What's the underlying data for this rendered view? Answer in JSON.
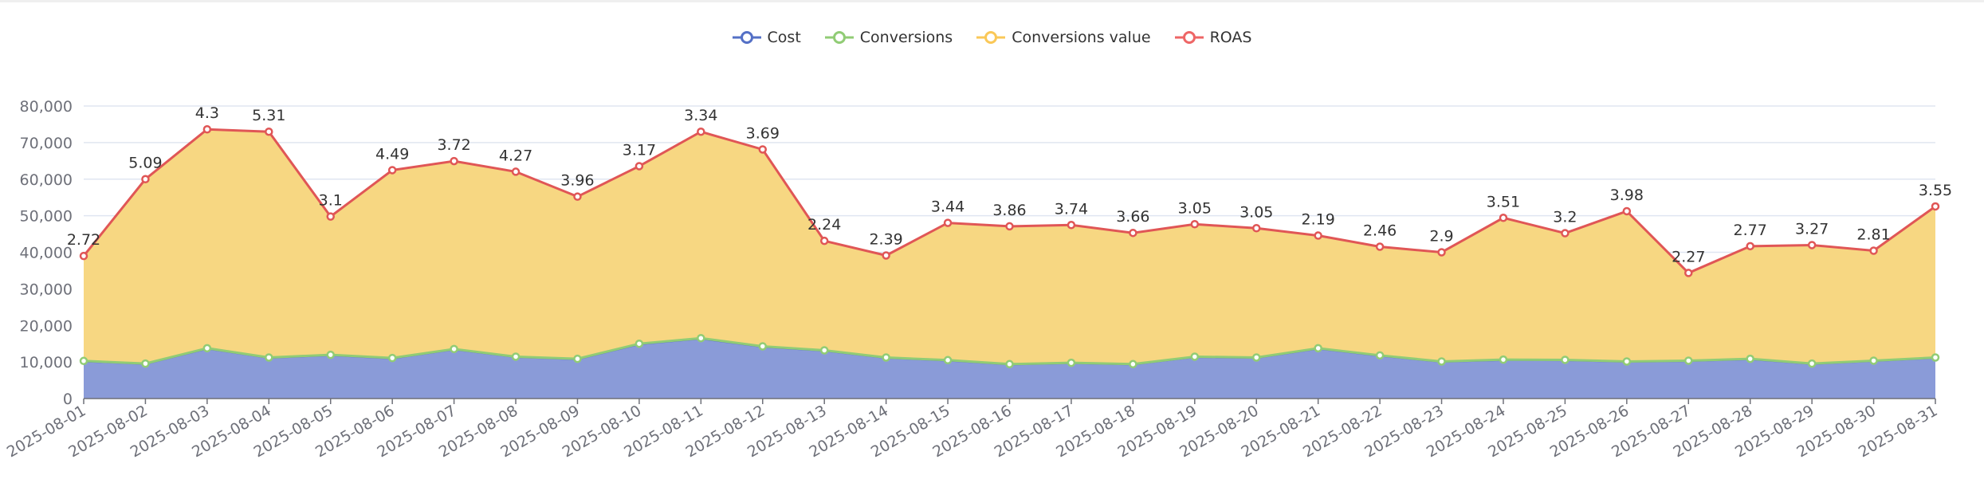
{
  "colors": {
    "cost": "#5470c6",
    "cost_area": "#8a9bd8",
    "conversions": "#91cc75",
    "conversions_value": "#fac858",
    "conversions_value_area": "#f7d782",
    "roas": "#e05656",
    "grid": "#e0e6f1",
    "axis": "#6e7079"
  },
  "legend": [
    {
      "name": "Cost",
      "icon": "circle-line-icon",
      "color": "#5470c6"
    },
    {
      "name": "Conversions",
      "icon": "circle-line-icon",
      "color": "#91cc75"
    },
    {
      "name": "Conversions value",
      "icon": "circle-line-icon",
      "color": "#fac858"
    },
    {
      "name": "ROAS",
      "icon": "circle-line-icon",
      "color": "#ee6666"
    }
  ],
  "chart_data": {
    "type": "area",
    "stacked": true,
    "title": "",
    "xlabel": "",
    "ylabel": "",
    "ylim": [
      0,
      80000
    ],
    "yticks": [
      "0",
      "10,000",
      "20,000",
      "30,000",
      "40,000",
      "50,000",
      "60,000",
      "70,000",
      "80,000"
    ],
    "grid": true,
    "legend_position": "top-center",
    "categories": [
      "2025-08-01",
      "2025-08-02",
      "2025-08-03",
      "2025-08-04",
      "2025-08-05",
      "2025-08-06",
      "2025-08-07",
      "2025-08-08",
      "2025-08-09",
      "2025-08-10",
      "2025-08-11",
      "2025-08-12",
      "2025-08-13",
      "2025-08-14",
      "2025-08-15",
      "2025-08-16",
      "2025-08-17",
      "2025-08-18",
      "2025-08-19",
      "2025-08-20",
      "2025-08-21",
      "2025-08-22",
      "2025-08-23",
      "2025-08-24",
      "2025-08-25",
      "2025-08-26",
      "2025-08-27",
      "2025-08-28",
      "2025-08-29",
      "2025-08-30",
      "2025-08-31"
    ],
    "series": [
      {
        "name": "Cost",
        "area": true,
        "values": [
          10140,
          9420,
          13600,
          11080,
          11800,
          10940,
          13380,
          11300,
          10720,
          14830,
          16340,
          14110,
          13030,
          11080,
          10360,
          9280,
          9640,
          9280,
          11300,
          11080,
          13600,
          11660,
          10000,
          10500,
          10430,
          10000,
          10220,
          10720,
          9420,
          10220,
          11080
        ]
      },
      {
        "name": "Conversions",
        "area": false,
        "values": [
          150,
          145,
          170,
          150,
          160,
          150,
          170,
          150,
          150,
          170,
          180,
          170,
          160,
          150,
          150,
          140,
          140,
          140,
          150,
          150,
          170,
          150,
          140,
          150,
          150,
          140,
          140,
          150,
          145,
          140,
          150
        ]
      },
      {
        "name": "Conversions value",
        "area": true,
        "values": [
          28700,
          50430,
          59850,
          61740,
          37820,
          51370,
          51380,
          50580,
          44350,
          48550,
          56450,
          53840,
          29930,
          27900,
          37530,
          37680,
          37680,
          35870,
          36230,
          35360,
          30800,
          29710,
          29860,
          38770,
          34640,
          41090,
          23990,
          30800,
          32400,
          30070,
          41310
        ]
      },
      {
        "name": "ROAS",
        "area": false,
        "show_labels": true,
        "values": [
          2.72,
          5.09,
          4.3,
          5.31,
          3.1,
          4.49,
          3.72,
          4.27,
          3.96,
          3.17,
          3.34,
          3.69,
          2.24,
          2.39,
          3.44,
          3.86,
          3.74,
          3.66,
          3.05,
          3.05,
          2.19,
          2.46,
          2.9,
          3.51,
          3.2,
          3.98,
          2.27,
          2.77,
          3.27,
          2.81,
          3.55
        ]
      }
    ]
  }
}
